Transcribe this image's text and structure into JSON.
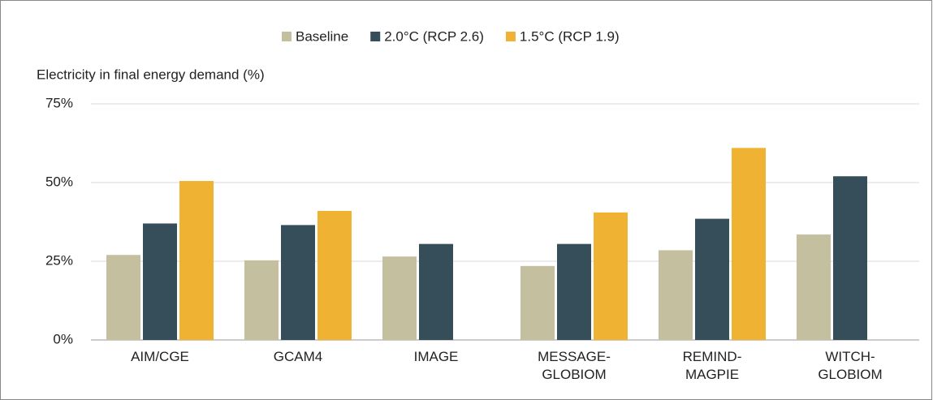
{
  "chart_data": {
    "type": "bar",
    "y_label": "Electricity in final energy demand (%)",
    "categories": [
      "AIM/CGE",
      "GCAM4",
      "IMAGE",
      "MESSAGE-\nGLOBIOM",
      "REMIND-\nMAGPIE",
      "WITCH-\nGLOBIOM"
    ],
    "series": [
      {
        "name": "Baseline",
        "color": "#c4bf9f",
        "values": [
          27,
          25.3,
          26.5,
          23.5,
          28.5,
          33.5
        ]
      },
      {
        "name": "2.0°C (RCP 2.6)",
        "color": "#364e5a",
        "values": [
          37,
          36.5,
          30.5,
          30.5,
          38.5,
          52
        ]
      },
      {
        "name": "1.5°C (RCP 1.9)",
        "color": "#f0b232",
        "values": [
          50.5,
          41,
          null,
          40.5,
          61,
          null
        ]
      }
    ],
    "ylim": [
      0,
      75
    ],
    "yticks": [
      {
        "value": 0,
        "label": "0%"
      },
      {
        "value": 25,
        "label": "25%"
      },
      {
        "value": 50,
        "label": "50%"
      },
      {
        "value": 75,
        "label": "75%"
      }
    ],
    "grid": true,
    "legend": "top"
  }
}
